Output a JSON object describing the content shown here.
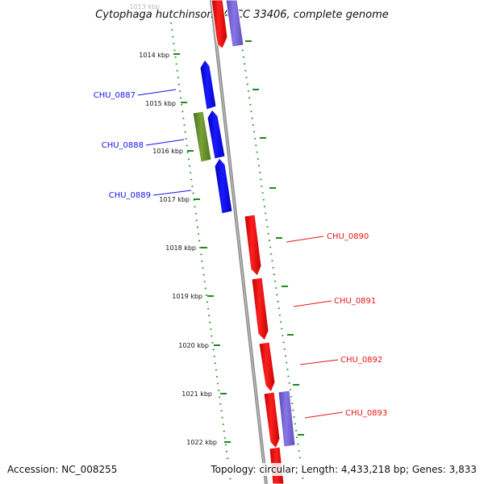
{
  "title": "Cytophaga hutchinsonii ATCC 33406, complete genome",
  "footer": {
    "accession": "Accession: NC_008255",
    "summary": "Topology: circular; Length: 4,433,218 bp; Genes: 3,833"
  },
  "ticks": [
    "1013 kbp",
    "1014 kbp",
    "1015 kbp",
    "1016 kbp",
    "1017 kbp",
    "1018 kbp",
    "1019 kbp",
    "1020 kbp",
    "1021 kbp",
    "1022 kbp"
  ],
  "genes": [
    {
      "name": "CHU_0887",
      "color": "#1414e6"
    },
    {
      "name": "CHU_0888",
      "color": "#1414e6"
    },
    {
      "name": "CHU_0889",
      "color": "#1414e6"
    },
    {
      "name": "CHU_0890",
      "color": "#e61414"
    },
    {
      "name": "CHU_0891",
      "color": "#e61414"
    },
    {
      "name": "CHU_0892",
      "color": "#e61414"
    },
    {
      "name": "CHU_0893",
      "color": "#e61414"
    }
  ],
  "colors": {
    "forward_cds": "#ff1a1a",
    "reverse_cds": "#1a1aff",
    "other_feature": "#7a62d8",
    "reverse_feature": "#5e8a28",
    "tick": "#1c8a1c",
    "backbone": "#8a8a8a"
  }
}
